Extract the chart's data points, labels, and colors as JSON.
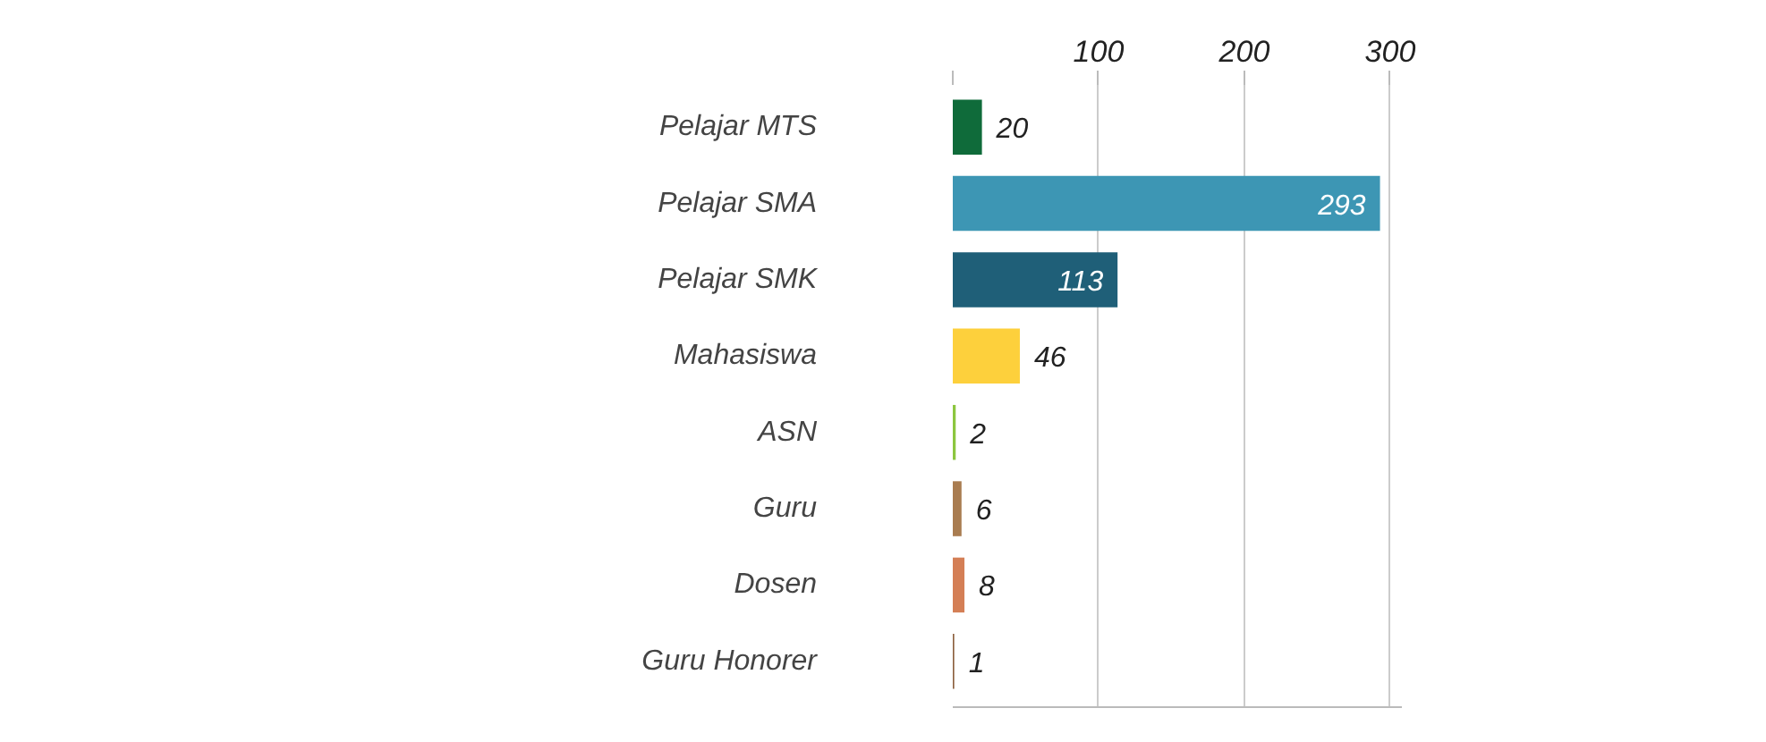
{
  "chart_data": {
    "type": "bar",
    "orientation": "horizontal",
    "categories": [
      "Pelajar MTS",
      "Pelajar SMA",
      "Pelajar SMK",
      "Mahasiswa",
      "ASN",
      "Guru",
      "Dosen",
      "Guru Honorer"
    ],
    "values": [
      20,
      293,
      113,
      46,
      2,
      6,
      8,
      1
    ],
    "colors": [
      "#0f6b3a",
      "#3d96b4",
      "#1f5f78",
      "#fdd03c",
      "#8cc63f",
      "#a97c50",
      "#d47f56",
      "#8b5e3c"
    ],
    "xlim": [
      0,
      308
    ],
    "xticks": [
      {
        "value": 0,
        "label": null
      },
      100,
      200,
      300
    ],
    "grid": "x",
    "data_labels": true
  }
}
